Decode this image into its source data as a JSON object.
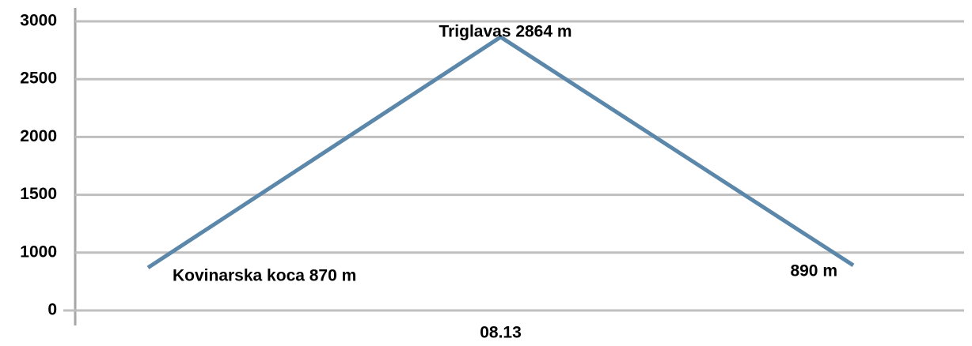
{
  "chart_data": {
    "type": "line",
    "categories": [
      null,
      "08.13",
      null
    ],
    "series": [
      {
        "color": "#5b87aa",
        "values": [
          870,
          2864,
          890
        ],
        "value_labels": [
          "Kovinarska koca  870 m",
          "Triglavas 2864 m",
          "890 m"
        ]
      }
    ],
    "ylim": [
      500,
      3000
    ],
    "yticks": [
      {
        "value": 500,
        "label": "0"
      },
      1000,
      1500,
      2000,
      2500,
      3000
    ],
    "grid": true
  }
}
